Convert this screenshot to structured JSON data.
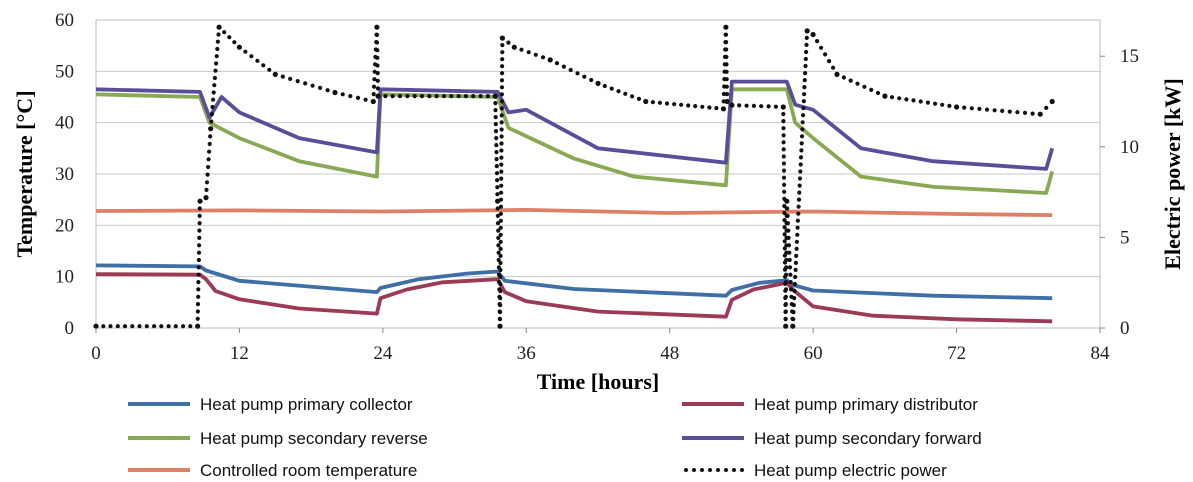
{
  "chart_data": {
    "type": "line",
    "xlabel": "Time [hours]",
    "ylabel_left": "Temperature [°C]",
    "ylabel_right": "Electric power [kW]",
    "xlim": [
      0,
      84
    ],
    "ylim_left": [
      0,
      60
    ],
    "ylim_right": [
      0,
      17
    ],
    "x_ticks": [
      "0",
      "12",
      "24",
      "36",
      "48",
      "60",
      "72",
      "84"
    ],
    "y_left_ticks": [
      "0",
      "10",
      "20",
      "30",
      "40",
      "50",
      "60"
    ],
    "y_right_ticks": [
      "0",
      "5",
      "10",
      "15"
    ],
    "grid": "horizontal",
    "legend_position": "bottom",
    "series": [
      {
        "name": "Heat pump primary collector",
        "axis": "left",
        "color": "#3f6fa6",
        "style": "solid",
        "x": [
          0,
          8.7,
          9.2,
          12,
          23.5,
          23.8,
          27,
          31,
          33.6,
          34.2,
          40,
          52.7,
          53.2,
          55.5,
          57.8,
          58.3,
          60,
          70,
          80
        ],
        "y": [
          12.2,
          12,
          11.2,
          9.2,
          7,
          7.8,
          9.5,
          10.6,
          11,
          9.2,
          7.6,
          6.3,
          7.4,
          8.8,
          9.3,
          8.4,
          7.3,
          6.3,
          5.8
        ]
      },
      {
        "name": "Heat pump primary distributor",
        "axis": "left",
        "color": "#9b3b55",
        "style": "solid",
        "x": [
          0,
          8.7,
          9.2,
          10,
          12,
          17,
          23.5,
          23.8,
          26,
          29,
          33.6,
          34.2,
          36,
          42,
          52.7,
          53.2,
          55,
          57.8,
          58.3,
          60,
          65,
          72,
          80
        ],
        "y": [
          10.5,
          10.4,
          9.5,
          7.2,
          5.6,
          3.8,
          2.8,
          5.8,
          7.5,
          8.9,
          9.5,
          7,
          5.2,
          3.2,
          2.2,
          5.5,
          7.5,
          8.8,
          7.5,
          4.2,
          2.4,
          1.7,
          1.3
        ]
      },
      {
        "name": "Heat pump secondary reverse",
        "axis": "left",
        "color": "#8aa955",
        "style": "solid",
        "x": [
          0,
          8.7,
          9.5,
          12,
          17,
          23.5,
          23.8,
          33.6,
          34.5,
          40,
          45,
          52.7,
          53.2,
          57.8,
          58.5,
          60,
          64,
          70,
          79.5,
          80
        ],
        "y": [
          45.5,
          45,
          40,
          37,
          32.5,
          29.5,
          45.5,
          45,
          39,
          33,
          29.5,
          27.8,
          46.5,
          46.5,
          40,
          37,
          29.5,
          27.5,
          26.3,
          30.5
        ]
      },
      {
        "name": "Heat pump secondary forward",
        "axis": "left",
        "color": "#5b4e99",
        "style": "solid",
        "x": [
          0,
          8.7,
          9.5,
          10.5,
          12,
          17,
          23.5,
          23.8,
          33.6,
          34.5,
          36,
          42,
          52.7,
          53.2,
          57.8,
          58.5,
          60,
          64,
          70,
          79.5,
          80
        ],
        "y": [
          46.5,
          46,
          41,
          45,
          42,
          37,
          34.2,
          46.5,
          46,
          42,
          42.5,
          35,
          32.2,
          48,
          48,
          43.5,
          42.5,
          35,
          32.5,
          31,
          35
        ]
      },
      {
        "name": "Controlled room temperature",
        "axis": "left",
        "color": "#df8066",
        "style": "solid",
        "x": [
          0,
          12,
          24,
          36,
          48,
          60,
          72,
          80
        ],
        "y": [
          22.8,
          22.9,
          22.7,
          23,
          22.4,
          22.7,
          22.2,
          22
        ]
      },
      {
        "name": "Heat pump electric power",
        "axis": "right",
        "color": "#111111",
        "style": "dotted",
        "x": [
          0,
          8.5,
          8.7,
          9.2,
          9.6,
          10.3,
          12,
          15,
          20,
          23.2,
          23.5,
          23.6,
          33.4,
          33.6,
          33.8,
          34,
          35,
          38,
          42,
          46,
          52.5,
          52.7,
          52.8,
          53.2,
          57.5,
          57.7,
          57.8,
          58.3,
          59.5,
          60,
          62,
          66,
          72,
          79,
          80
        ],
        "y": [
          0.1,
          0.1,
          7,
          7.2,
          11,
          16.6,
          15.5,
          14,
          13,
          12.5,
          16.6,
          12.8,
          12.8,
          7,
          0.1,
          16,
          15.5,
          14.8,
          13.5,
          12.5,
          12.1,
          16.6,
          12.5,
          12.3,
          12.2,
          0.1,
          7,
          0.1,
          16.4,
          16.2,
          14,
          12.8,
          12.2,
          11.8,
          12.5
        ]
      }
    ]
  }
}
